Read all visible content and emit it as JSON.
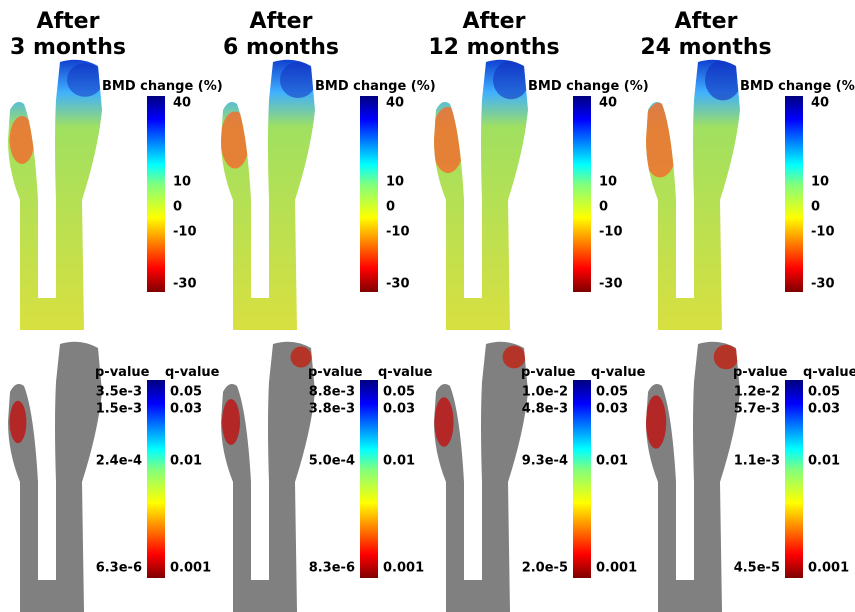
{
  "columns": [
    {
      "title": [
        "After",
        "3 months"
      ],
      "bmd": {
        "label": "BMD change (%)",
        "ticks": [
          "40",
          "10",
          "0",
          "-10",
          "-30"
        ]
      },
      "significance": {
        "p_label": "p-value",
        "q_label": "q-value",
        "p_ticks": [
          "3.5e-3",
          "1.5e-3",
          "2.4e-4",
          "6.3e-6"
        ],
        "q_ticks": [
          "0.05",
          "0.03",
          "0.01",
          "0.001"
        ]
      }
    },
    {
      "title": [
        "After",
        "6 months"
      ],
      "bmd": {
        "label": "BMD change (%)",
        "ticks": [
          "40",
          "10",
          "0",
          "-10",
          "-30"
        ]
      },
      "significance": {
        "p_label": "p-value",
        "q_label": "q-value",
        "p_ticks": [
          "8.8e-3",
          "3.8e-3",
          "5.0e-4",
          "8.3e-6"
        ],
        "q_ticks": [
          "0.05",
          "0.03",
          "0.01",
          "0.001"
        ]
      }
    },
    {
      "title": [
        "After",
        "12 months"
      ],
      "bmd": {
        "label": "BMD change (%)",
        "ticks": [
          "40",
          "10",
          "0",
          "-10",
          "-30"
        ]
      },
      "significance": {
        "p_label": "p-value",
        "q_label": "q-value",
        "p_ticks": [
          "1.0e-2",
          "4.8e-3",
          "9.3e-4",
          "2.0e-5"
        ],
        "q_ticks": [
          "0.05",
          "0.03",
          "0.01",
          "0.001"
        ]
      }
    },
    {
      "title": [
        "After",
        "24 months"
      ],
      "bmd": {
        "label": "BMD change (%)",
        "ticks": [
          "40",
          "10",
          "0",
          "-10",
          "-30"
        ]
      },
      "significance": {
        "p_label": "p-value",
        "q_label": "q-value",
        "p_ticks": [
          "1.2e-2",
          "5.7e-3",
          "1.1e-3",
          "4.5e-5"
        ],
        "q_ticks": [
          "0.05",
          "0.03",
          "0.01",
          "0.001"
        ]
      }
    }
  ]
}
